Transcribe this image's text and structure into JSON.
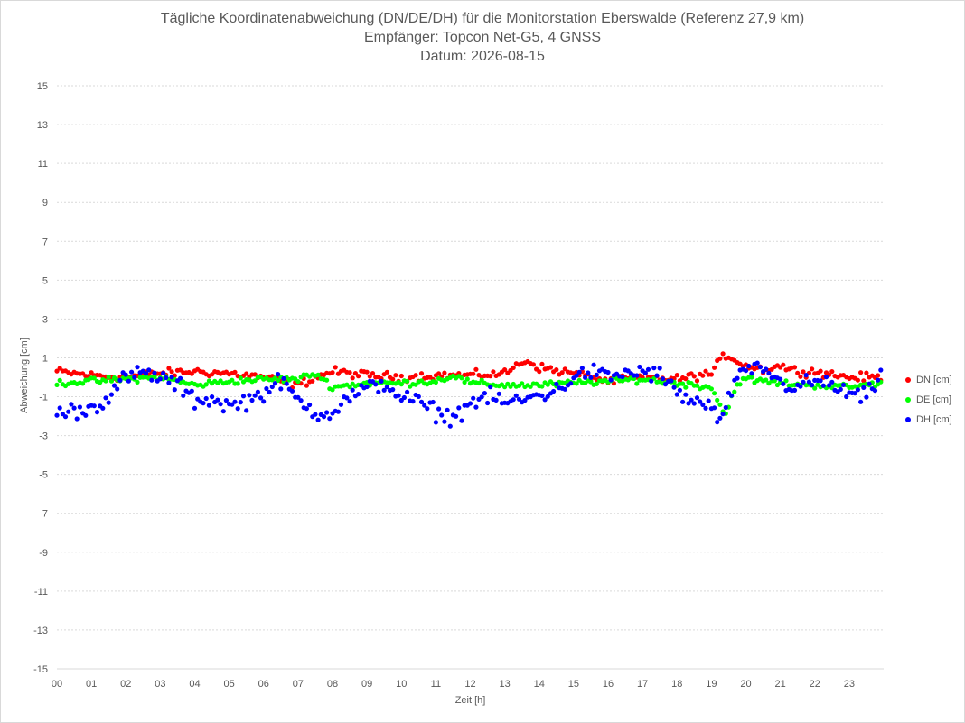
{
  "chart_data": {
    "type": "scatter",
    "title_lines": [
      "Tägliche Koordinatenabweichung (DN/DE/DH) für die Monitorstation Eberswalde (Referenz 27,9 km)",
      "Empfänger: Topcon Net-G5, 4 GNSS",
      "Datum: 2026-08-15"
    ],
    "xlabel": "Zeit [h]",
    "ylabel": "Abweichung [cm]",
    "xlim": [
      0,
      24
    ],
    "ylim": [
      -15,
      15
    ],
    "x_ticks": [
      "00",
      "01",
      "02",
      "03",
      "04",
      "05",
      "06",
      "07",
      "08",
      "09",
      "10",
      "11",
      "12",
      "13",
      "14",
      "15",
      "16",
      "17",
      "18",
      "19",
      "20",
      "21",
      "22",
      "23"
    ],
    "y_ticks": [
      "15",
      "13",
      "11",
      "9",
      "7",
      "5",
      "3",
      "1",
      "-1",
      "-3",
      "-5",
      "-7",
      "-9",
      "-11",
      "-13",
      "-15"
    ],
    "grid": "horizontal dotted",
    "legend_position": "right",
    "series": [
      {
        "name": "DN [cm]",
        "color": "#ff0000",
        "anchors": [
          [
            0,
            0.3
          ],
          [
            1,
            0.1
          ],
          [
            2,
            0.0
          ],
          [
            3,
            0.2
          ],
          [
            4,
            0.3
          ],
          [
            5,
            0.2
          ],
          [
            6,
            0.0
          ],
          [
            7,
            -0.4
          ],
          [
            7.5,
            0.0
          ],
          [
            8,
            0.3
          ],
          [
            9,
            0.1
          ],
          [
            10,
            0.0
          ],
          [
            11,
            0.1
          ],
          [
            12,
            0.1
          ],
          [
            13,
            0.2
          ],
          [
            13.6,
            0.9
          ],
          [
            14,
            0.5
          ],
          [
            15,
            0.2
          ],
          [
            16,
            -0.2
          ],
          [
            17,
            0.0
          ],
          [
            18,
            -0.1
          ],
          [
            19,
            0.2
          ],
          [
            19.4,
            1.2
          ],
          [
            19.8,
            0.8
          ],
          [
            20,
            0.6
          ],
          [
            20.5,
            0.4
          ],
          [
            21,
            0.6
          ],
          [
            21.5,
            0.3
          ],
          [
            22,
            0.3
          ],
          [
            23,
            0.0
          ],
          [
            23.9,
            0.0
          ]
        ],
        "noise": 0.2
      },
      {
        "name": "DE [cm]",
        "color": "#00ff00",
        "anchors": [
          [
            0,
            -0.3
          ],
          [
            1,
            -0.2
          ],
          [
            2,
            -0.1
          ],
          [
            3,
            0.0
          ],
          [
            4,
            -0.4
          ],
          [
            5,
            -0.2
          ],
          [
            6,
            -0.1
          ],
          [
            7,
            -0.1
          ],
          [
            7.5,
            0.2
          ],
          [
            8,
            -0.5
          ],
          [
            9,
            -0.3
          ],
          [
            10,
            -0.3
          ],
          [
            11,
            -0.2
          ],
          [
            11.5,
            0.1
          ],
          [
            12,
            -0.3
          ],
          [
            13,
            -0.4
          ],
          [
            14,
            -0.4
          ],
          [
            15,
            -0.3
          ],
          [
            16,
            -0.2
          ],
          [
            17,
            -0.1
          ],
          [
            18,
            -0.3
          ],
          [
            19,
            -0.5
          ],
          [
            19.4,
            -2.0
          ],
          [
            19.7,
            -0.4
          ],
          [
            20,
            -0.1
          ],
          [
            21,
            -0.3
          ],
          [
            22,
            -0.4
          ],
          [
            23,
            -0.5
          ],
          [
            23.9,
            -0.3
          ]
        ],
        "noise": 0.15
      },
      {
        "name": "DH [cm]",
        "color": "#0000ff",
        "anchors": [
          [
            0,
            -1.9
          ],
          [
            0.5,
            -1.7
          ],
          [
            1,
            -1.6
          ],
          [
            1.5,
            -1.0
          ],
          [
            2,
            0.0
          ],
          [
            2.5,
            0.2
          ],
          [
            3,
            0.0
          ],
          [
            3.5,
            -0.4
          ],
          [
            4,
            -1.2
          ],
          [
            4.5,
            -1.1
          ],
          [
            5,
            -1.5
          ],
          [
            5.5,
            -1.2
          ],
          [
            6,
            -0.8
          ],
          [
            6.5,
            -0.2
          ],
          [
            7,
            -1.2
          ],
          [
            7.5,
            -1.8
          ],
          [
            8,
            -1.8
          ],
          [
            8.5,
            -1.0
          ],
          [
            9,
            -0.6
          ],
          [
            9.5,
            -0.3
          ],
          [
            10,
            -1.0
          ],
          [
            10.5,
            -1.3
          ],
          [
            11,
            -1.8
          ],
          [
            11.5,
            -2.1
          ],
          [
            12,
            -1.3
          ],
          [
            12.5,
            -1.0
          ],
          [
            13,
            -1.3
          ],
          [
            13.5,
            -1.2
          ],
          [
            14,
            -0.9
          ],
          [
            14.5,
            -0.7
          ],
          [
            15,
            0.0
          ],
          [
            15.5,
            0.3
          ],
          [
            16,
            0.0
          ],
          [
            16.5,
            0.2
          ],
          [
            17,
            0.3
          ],
          [
            17.5,
            0.1
          ],
          [
            18,
            -0.8
          ],
          [
            18.5,
            -1.3
          ],
          [
            19,
            -1.5
          ],
          [
            19.3,
            -2.6
          ],
          [
            19.5,
            -0.8
          ],
          [
            20,
            0.3
          ],
          [
            20.5,
            0.5
          ],
          [
            21,
            -0.3
          ],
          [
            21.5,
            -0.5
          ],
          [
            22,
            -0.2
          ],
          [
            22.5,
            -0.4
          ],
          [
            23,
            -0.9
          ],
          [
            23.5,
            -1.0
          ],
          [
            23.9,
            -0.1
          ]
        ],
        "noise": 0.4
      }
    ]
  }
}
